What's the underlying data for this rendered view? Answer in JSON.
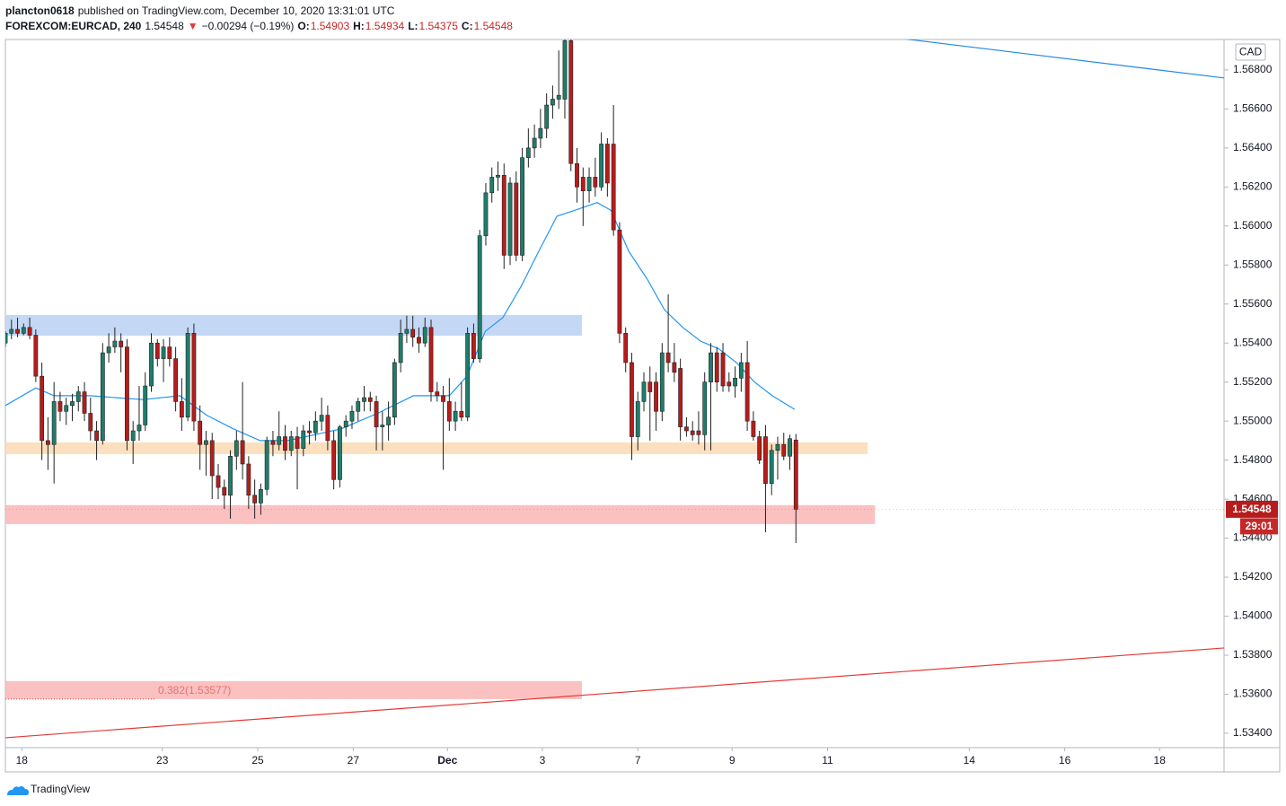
{
  "chart_data": {
    "type": "candlestick",
    "header": {
      "author": "plancton0618",
      "published": "published on TradingView.com, December 10, 2020 13:31:01 UTC",
      "legend": [
        {
          "text": "FOREXCOM:EURCAD, 240",
          "color": "#131722",
          "bold": true
        },
        {
          "text": "1.54548",
          "color": "#131722",
          "bold": false
        },
        {
          "text": "▼",
          "color": "#e53935",
          "bold": false
        },
        {
          "text": "−0.00294 (−0.19%)",
          "color": "#131722",
          "bold": false
        },
        {
          "text": "O:",
          "color": "#131722",
          "bold": true
        },
        {
          "text": "1.54903",
          "color": "#c62828",
          "bold": false
        },
        {
          "text": "H:",
          "color": "#131722",
          "bold": true
        },
        {
          "text": "1.54934",
          "color": "#c62828",
          "bold": false
        },
        {
          "text": "L:",
          "color": "#131722",
          "bold": true
        },
        {
          "text": "1.54375",
          "color": "#c62828",
          "bold": false
        },
        {
          "text": "C:",
          "color": "#131722",
          "bold": true
        },
        {
          "text": "1.54548",
          "color": "#c62828",
          "bold": false
        }
      ]
    },
    "currency": "CAD",
    "last_label": "1.54548",
    "countdown": "29:01",
    "brand": "TradingView",
    "up_color": "#1e7d6b",
    "down_color": "#b71c1c",
    "ylim": [
      1.53326,
      1.56956
    ],
    "yticks": [
      {
        "value": 1.534,
        "label": "1.53400"
      },
      {
        "value": 1.536,
        "label": "1.53600"
      },
      {
        "value": 1.538,
        "label": "1.53800"
      },
      {
        "value": 1.54,
        "label": "1.54000"
      },
      {
        "value": 1.542,
        "label": "1.54200"
      },
      {
        "value": 1.544,
        "label": "1.54400"
      },
      {
        "value": 1.546,
        "label": "1.54600"
      },
      {
        "value": 1.548,
        "label": "1.54800"
      },
      {
        "value": 1.55,
        "label": "1.55000"
      },
      {
        "value": 1.552,
        "label": "1.55200"
      },
      {
        "value": 1.554,
        "label": "1.55400"
      },
      {
        "value": 1.556,
        "label": "1.55600"
      },
      {
        "value": 1.558,
        "label": "1.55800"
      },
      {
        "value": 1.56,
        "label": "1.56000"
      },
      {
        "value": 1.562,
        "label": "1.56200"
      },
      {
        "value": 1.564,
        "label": "1.56400"
      },
      {
        "value": 1.566,
        "label": "1.56600"
      },
      {
        "value": 1.568,
        "label": "1.56800"
      }
    ],
    "xlim": [
      0,
      200.4
    ],
    "xticks": [
      {
        "value": 2.7,
        "label": "18"
      },
      {
        "value": 25.8,
        "label": "23"
      },
      {
        "value": 41.5,
        "label": "25"
      },
      {
        "value": 57.2,
        "label": "27"
      },
      {
        "value": 72.7,
        "label": "Dec"
      },
      {
        "value": 88.3,
        "label": "3"
      },
      {
        "value": 104,
        "label": "7"
      },
      {
        "value": 119.5,
        "label": "9"
      },
      {
        "value": 135.2,
        "label": "11"
      },
      {
        "value": 158.5,
        "label": "14"
      },
      {
        "value": 174.2,
        "label": "16"
      },
      {
        "value": 189.8,
        "label": "18"
      }
    ],
    "grid": false,
    "zones": [
      {
        "x": [
          0,
          94.8
        ],
        "y": [
          1.55438,
          1.55544
        ],
        "color": "#bed3f4"
      },
      {
        "x": [
          0,
          141.8
        ],
        "y": [
          1.54831,
          1.54891
        ],
        "color": "#fcdcb8"
      },
      {
        "x": [
          0,
          143
        ],
        "y": [
          1.54472,
          1.54569
        ],
        "color": "#fbb9b9"
      },
      {
        "x": [
          0,
          94.8
        ],
        "y": [
          1.53575,
          1.53667
        ],
        "color": "#fbb9b9",
        "label": "0.382(1.53577)"
      }
    ],
    "trendlines": [
      {
        "x": [
          0,
          200.4
        ],
        "y": [
          1.53377,
          1.53837
        ],
        "color": "#e53935"
      },
      {
        "x": [
          147.3,
          200.4
        ],
        "y": [
          1.56961,
          1.56759
        ],
        "color": "#1e88e5"
      }
    ],
    "ma": {
      "color": "#2196f3",
      "x": [
        0,
        5,
        8,
        13.9,
        18.3,
        22.7,
        28.7,
        33.1,
        37.5,
        41.9,
        46.4,
        50.8,
        55.2,
        61.2,
        67.1,
        73,
        75.9,
        78.9,
        81.8,
        84.8,
        87.7,
        90.7,
        93.6,
        97.3,
        99.6,
        102.5,
        105.5,
        108.4,
        111.4,
        114.3,
        117.3,
        120.2,
        123.2,
        126.1,
        129.8
      ],
      "values": [
        1.5508,
        1.5517,
        1.5513,
        1.5513,
        1.5512,
        1.5511,
        1.5513,
        1.5503,
        1.5496,
        1.549,
        1.549,
        1.5493,
        1.5496,
        1.5504,
        1.5513,
        1.5513,
        1.5523,
        1.5546,
        1.5553,
        1.5569,
        1.5587,
        1.5605,
        1.5608,
        1.5612,
        1.5608,
        1.5587,
        1.5573,
        1.5557,
        1.5548,
        1.5541,
        1.5537,
        1.553,
        1.552,
        1.5513,
        1.5506
      ]
    },
    "ohlc": [
      [
        1.554,
        1.5546,
        1.5538,
        1.5545
      ],
      [
        1.5545,
        1.5552,
        1.5542,
        1.5547
      ],
      [
        1.5547,
        1.5553,
        1.5543,
        1.5545
      ],
      [
        1.5545,
        1.555,
        1.5544,
        1.5548
      ],
      [
        1.5548,
        1.5553,
        1.5542,
        1.5544
      ],
      [
        1.5544,
        1.5547,
        1.552,
        1.5523
      ],
      [
        1.5523,
        1.553,
        1.548,
        1.549
      ],
      [
        1.549,
        1.5502,
        1.5475,
        1.5488
      ],
      [
        1.5488,
        1.552,
        1.5468,
        1.551
      ],
      [
        1.551,
        1.5515,
        1.55,
        1.5505
      ],
      [
        1.5505,
        1.5512,
        1.5498,
        1.5508
      ],
      [
        1.5508,
        1.5514,
        1.55,
        1.551
      ],
      [
        1.551,
        1.5518,
        1.5505,
        1.5515
      ],
      [
        1.5515,
        1.552,
        1.55,
        1.5504
      ],
      [
        1.5504,
        1.5512,
        1.549,
        1.5495
      ],
      [
        1.5495,
        1.55,
        1.548,
        1.549
      ],
      [
        1.549,
        1.554,
        1.5488,
        1.5535
      ],
      [
        1.5535,
        1.5545,
        1.553,
        1.5538
      ],
      [
        1.5538,
        1.5548,
        1.5535,
        1.5541
      ],
      [
        1.5541,
        1.5545,
        1.5525,
        1.5538
      ],
      [
        1.5538,
        1.5542,
        1.5485,
        1.549
      ],
      [
        1.549,
        1.55,
        1.5478,
        1.5495
      ],
      [
        1.5495,
        1.5518,
        1.549,
        1.5498
      ],
      [
        1.5498,
        1.5525,
        1.5495,
        1.5518
      ],
      [
        1.5518,
        1.5545,
        1.5515,
        1.554
      ],
      [
        1.554,
        1.5542,
        1.5528,
        1.5532
      ],
      [
        1.5532,
        1.5542,
        1.552,
        1.5538
      ],
      [
        1.5538,
        1.5543,
        1.5528,
        1.5532
      ],
      [
        1.5532,
        1.5538,
        1.5505,
        1.551
      ],
      [
        1.551,
        1.5522,
        1.5495,
        1.5502
      ],
      [
        1.5502,
        1.5548,
        1.55,
        1.5545
      ],
      [
        1.5545,
        1.555,
        1.5495,
        1.55
      ],
      [
        1.55,
        1.5508,
        1.5475,
        1.5488
      ],
      [
        1.5488,
        1.5495,
        1.5472,
        1.549
      ],
      [
        1.549,
        1.5494,
        1.546,
        1.5472
      ],
      [
        1.5472,
        1.5478,
        1.546,
        1.5466
      ],
      [
        1.5466,
        1.547,
        1.5455,
        1.5462
      ],
      [
        1.5462,
        1.5485,
        1.545,
        1.5482
      ],
      [
        1.5482,
        1.5495,
        1.5475,
        1.549
      ],
      [
        1.549,
        1.552,
        1.547,
        1.5478
      ],
      [
        1.5478,
        1.5482,
        1.5455,
        1.5462
      ],
      [
        1.5462,
        1.547,
        1.545,
        1.5458
      ],
      [
        1.5458,
        1.5468,
        1.5452,
        1.5465
      ],
      [
        1.5465,
        1.5492,
        1.5462,
        1.549
      ],
      [
        1.549,
        1.5495,
        1.5482,
        1.5488
      ],
      [
        1.5488,
        1.5505,
        1.5485,
        1.5492
      ],
      [
        1.5492,
        1.5498,
        1.548,
        1.5485
      ],
      [
        1.5485,
        1.5495,
        1.5482,
        1.5492
      ],
      [
        1.5492,
        1.5497,
        1.5465,
        1.5486
      ],
      [
        1.5486,
        1.5498,
        1.5482,
        1.5495
      ],
      [
        1.5495,
        1.55,
        1.5488,
        1.5494
      ],
      [
        1.5494,
        1.5505,
        1.549,
        1.55
      ],
      [
        1.55,
        1.5512,
        1.5495,
        1.5503
      ],
      [
        1.5503,
        1.5508,
        1.5485,
        1.549
      ],
      [
        1.549,
        1.5495,
        1.5465,
        1.547
      ],
      [
        1.547,
        1.5498,
        1.5466,
        1.5497
      ],
      [
        1.5497,
        1.5503,
        1.5492,
        1.55
      ],
      [
        1.55,
        1.5508,
        1.5496,
        1.5505
      ],
      [
        1.5505,
        1.5512,
        1.55,
        1.551
      ],
      [
        1.551,
        1.5518,
        1.5505,
        1.5512
      ],
      [
        1.5512,
        1.5515,
        1.5505,
        1.551
      ],
      [
        1.551,
        1.5513,
        1.5485,
        1.5497
      ],
      [
        1.5497,
        1.5505,
        1.5485,
        1.5498
      ],
      [
        1.5498,
        1.551,
        1.549,
        1.5502
      ],
      [
        1.5502,
        1.5532,
        1.5498,
        1.553
      ],
      [
        1.553,
        1.5552,
        1.5525,
        1.5545
      ],
      [
        1.5545,
        1.5554,
        1.554,
        1.5547
      ],
      [
        1.5547,
        1.5554,
        1.5538,
        1.5543
      ],
      [
        1.5543,
        1.5548,
        1.5535,
        1.554
      ],
      [
        1.554,
        1.5553,
        1.5538,
        1.5548
      ],
      [
        1.5548,
        1.5552,
        1.551,
        1.5515
      ],
      [
        1.5515,
        1.552,
        1.551,
        1.5513
      ],
      [
        1.5513,
        1.5518,
        1.5475,
        1.551
      ],
      [
        1.551,
        1.5522,
        1.5495,
        1.55
      ],
      [
        1.55,
        1.551,
        1.5495,
        1.5505
      ],
      [
        1.5505,
        1.552,
        1.55,
        1.5502
      ],
      [
        1.5502,
        1.5548,
        1.55,
        1.5545
      ],
      [
        1.5545,
        1.555,
        1.553,
        1.5532
      ],
      [
        1.5532,
        1.5598,
        1.553,
        1.5595
      ],
      [
        1.5595,
        1.5622,
        1.559,
        1.5617
      ],
      [
        1.5617,
        1.563,
        1.5612,
        1.5625
      ],
      [
        1.5625,
        1.5633,
        1.5618,
        1.5626
      ],
      [
        1.5626,
        1.5632,
        1.5578,
        1.5585
      ],
      [
        1.5585,
        1.5625,
        1.558,
        1.5622
      ],
      [
        1.5622,
        1.5628,
        1.5582,
        1.5585
      ],
      [
        1.5585,
        1.564,
        1.5582,
        1.5635
      ],
      [
        1.5635,
        1.565,
        1.563,
        1.564
      ],
      [
        1.564,
        1.5652,
        1.5635,
        1.5645
      ],
      [
        1.5645,
        1.566,
        1.564,
        1.565
      ],
      [
        1.565,
        1.5668,
        1.5645,
        1.5662
      ],
      [
        1.5662,
        1.5672,
        1.5655,
        1.5665
      ],
      [
        1.5665,
        1.569,
        1.566,
        1.5667
      ],
      [
        1.5665,
        1.5696,
        1.5655,
        1.5695
      ],
      [
        1.5695,
        1.5696,
        1.5628,
        1.5632
      ],
      [
        1.5632,
        1.564,
        1.5612,
        1.562
      ],
      [
        1.5625,
        1.563,
        1.56,
        1.5618
      ],
      [
        1.5618,
        1.563,
        1.5612,
        1.5625
      ],
      [
        1.5625,
        1.5635,
        1.5615,
        1.562
      ],
      [
        1.562,
        1.5648,
        1.5618,
        1.5642
      ],
      [
        1.5642,
        1.5645,
        1.5615,
        1.5622
      ],
      [
        1.5642,
        1.5662,
        1.5595,
        1.5598
      ],
      [
        1.5598,
        1.5602,
        1.554,
        1.5545
      ],
      [
        1.5545,
        1.5548,
        1.5525,
        1.553
      ],
      [
        1.553,
        1.5535,
        1.548,
        1.5492
      ],
      [
        1.5492,
        1.5515,
        1.5485,
        1.551
      ],
      [
        1.551,
        1.5525,
        1.5505,
        1.552
      ],
      [
        1.552,
        1.5528,
        1.549,
        1.5515
      ],
      [
        1.552,
        1.5525,
        1.5495,
        1.5505
      ],
      [
        1.5505,
        1.554,
        1.55,
        1.5535
      ],
      [
        1.5535,
        1.5565,
        1.5525,
        1.553
      ],
      [
        1.553,
        1.554,
        1.552,
        1.5525
      ],
      [
        1.5527,
        1.5532,
        1.549,
        1.5497
      ],
      [
        1.5497,
        1.5502,
        1.5492,
        1.5495
      ],
      [
        1.5495,
        1.55,
        1.549,
        1.5493
      ],
      [
        1.5495,
        1.5505,
        1.5488,
        1.5493
      ],
      [
        1.5493,
        1.5525,
        1.5485,
        1.552
      ],
      [
        1.552,
        1.554,
        1.5485,
        1.5535
      ],
      [
        1.5535,
        1.5538,
        1.5515,
        1.552
      ],
      [
        1.5535,
        1.554,
        1.5515,
        1.5518
      ],
      [
        1.552,
        1.5525,
        1.5515,
        1.5518
      ],
      [
        1.5518,
        1.5528,
        1.5512,
        1.5522
      ],
      [
        1.5522,
        1.5535,
        1.5515,
        1.553
      ],
      [
        1.553,
        1.5541,
        1.5495,
        1.55
      ],
      [
        1.55,
        1.5505,
        1.549,
        1.5492
      ],
      [
        1.5492,
        1.5495,
        1.5478,
        1.548
      ],
      [
        1.5492,
        1.5498,
        1.5443,
        1.5468
      ],
      [
        1.5468,
        1.5488,
        1.5462,
        1.5485
      ],
      [
        1.5485,
        1.5492,
        1.547,
        1.5488
      ],
      [
        1.5488,
        1.5494,
        1.548,
        1.5482
      ],
      [
        1.5482,
        1.5493,
        1.5475,
        1.5491
      ],
      [
        1.54903,
        1.54934,
        1.54375,
        1.54548
      ]
    ]
  }
}
